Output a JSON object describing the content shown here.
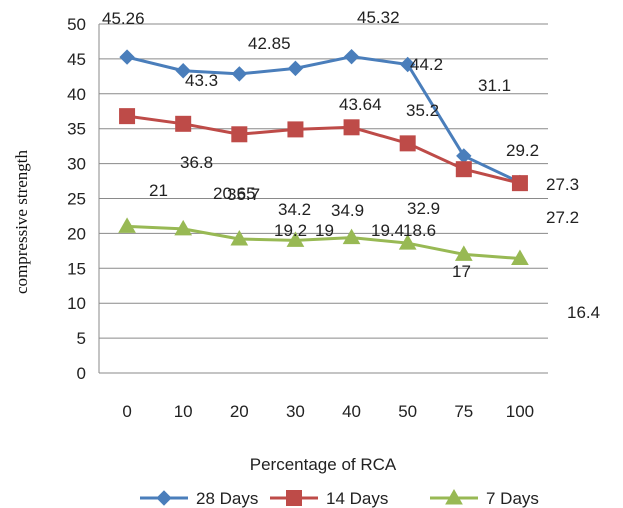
{
  "chart_data": {
    "type": "line",
    "categories": [
      "0",
      "10",
      "20",
      "30",
      "40",
      "50",
      "75",
      "100"
    ],
    "xlabel": "Percentage of RCA",
    "ylabel": "compressive strength",
    "ylim": [
      0,
      50
    ],
    "yticks": [
      "0",
      "5",
      "10",
      "15",
      "20",
      "25",
      "30",
      "35",
      "40",
      "45",
      "50"
    ],
    "grid": true,
    "legend_position": "bottom",
    "series": [
      {
        "name": "28 Days",
        "color": "#4a7ebb",
        "marker": "diamond",
        "values": [
          45.26,
          43.3,
          42.85,
          43.64,
          45.32,
          44.2,
          31.1,
          27.3
        ],
        "labels": [
          "45.26",
          "43.3",
          "42.85",
          "43.64",
          "45.32",
          "44.2",
          "31.1",
          "27.3"
        ]
      },
      {
        "name": "14 Days",
        "color": "#be4b48",
        "marker": "square",
        "values": [
          36.8,
          35.7,
          34.2,
          34.9,
          35.2,
          32.9,
          29.2,
          27.2
        ],
        "labels": [
          "36.8",
          "35.7",
          "34.2",
          "34.9",
          "35.2",
          "32.9",
          "29.2",
          "27.2"
        ]
      },
      {
        "name": "7 Days",
        "color": "#98b954",
        "marker": "triangle",
        "values": [
          21,
          20.65,
          19.2,
          19,
          19.4,
          18.6,
          17,
          16.4
        ],
        "labels": [
          "21",
          "20.65",
          "19.2",
          "19",
          "19.4",
          "18.6",
          "17",
          "16.4"
        ]
      }
    ]
  }
}
